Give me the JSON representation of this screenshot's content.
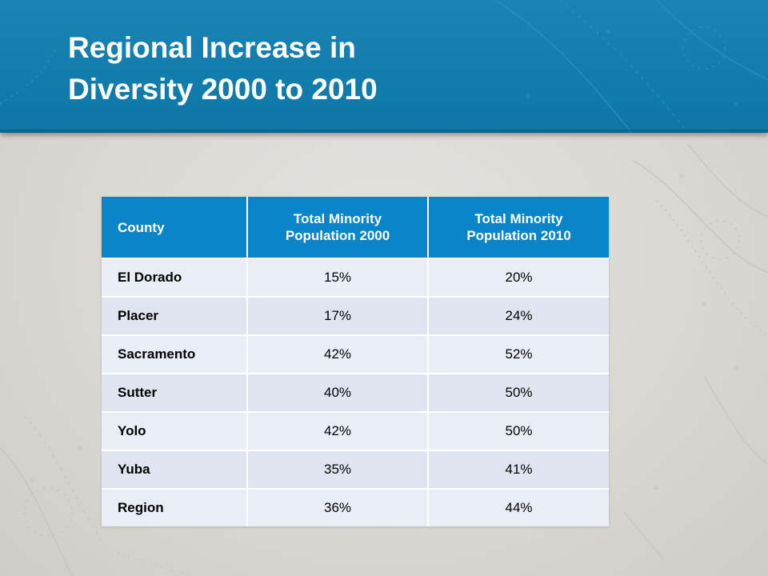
{
  "slide": {
    "title_line1": "Regional Increase in",
    "title_line2": "Diversity 2000 to 2010"
  },
  "table": {
    "headers": {
      "county": "County",
      "pop2000_line1": "Total Minority",
      "pop2000_line2": "Population 2000",
      "pop2010_line1": "Total Minority",
      "pop2010_line2": "Population 2010"
    },
    "rows": [
      {
        "county": "El Dorado",
        "pop2000": "15%",
        "pop2010": "20%"
      },
      {
        "county": "Placer",
        "pop2000": "17%",
        "pop2010": "24%"
      },
      {
        "county": "Sacramento",
        "pop2000": "42%",
        "pop2010": "52%"
      },
      {
        "county": "Sutter",
        "pop2000": "40%",
        "pop2010": "50%"
      },
      {
        "county": "Yolo",
        "pop2000": "42%",
        "pop2010": "50%"
      },
      {
        "county": "Yuba",
        "pop2000": "35%",
        "pop2010": "41%"
      },
      {
        "county": "Region",
        "pop2000": "36%",
        "pop2010": "44%"
      }
    ]
  },
  "colors": {
    "header_band": "#117cad",
    "table_header": "#0b85c9",
    "row_light": "#e9edf5",
    "row_alt": "#dfe5f0",
    "background": "#d9d7d2"
  }
}
